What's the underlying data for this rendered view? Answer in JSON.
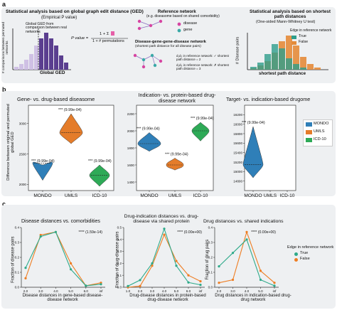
{
  "panel_a": {
    "letter": "a",
    "left": {
      "title": "Statistical analysis based on global graph edit distance (GED)",
      "subtitle": "(Empirical P value)",
      "annotation": "Global GED from comparison between real networks",
      "formula_lhs": "P value =",
      "formula_num": "1 + Σ",
      "formula_den": "1 + # permutations",
      "ylabel": "# comparisons between permuted networks",
      "xlabel": "Global GED"
    },
    "middle": {
      "ref_title": "Reference network",
      "ref_sub": "(e.g. diseasome based on shared comorbidity)",
      "legend_disease": "disease",
      "legend_gene": "gene",
      "dgd_title": "Disease-gene-gene-disease network",
      "dgd_sub": "(shortest path distance for all disease pairs)",
      "path1": "d₁d₂ in reference network: ✓ shortest path distance = 2",
      "path2": "d₁d₃ in reference network: ✗ shortest path distance = 3"
    },
    "right": {
      "title": "Statistical analysis based on shortest path distances",
      "subtitle": "(One-sided Mann-Whitney U test)",
      "legend_title": "Edge in reference network",
      "legend_true": "True",
      "legend_false": "False",
      "ylabel": "# Disease pairs",
      "xlabel": "shortest path distance"
    }
  },
  "panel_b": {
    "letter": "b",
    "ylabel": "Difference between original and permuted global GED",
    "colors": {
      "MONDO": "#2f7fb8",
      "UMLS": "#e47c2a",
      "ICD-10": "#2eaa57"
    },
    "legend": [
      "MONDO",
      "UMLS",
      "ICD-10"
    ],
    "subplots": [
      {
        "title": "Gene- vs. drug-based diseasome",
        "categories": [
          "MONDO",
          "UMLS",
          "ICD-10"
        ],
        "medians": [
          2350,
          2850,
          2150
        ],
        "ylim": [
          1900,
          3300
        ],
        "yticks": [
          "2000",
          "2500",
          "3000"
        ],
        "annotations": [
          "*** (9.99e-04)",
          "*** (9.99e-04)",
          "*** (9.99e-04)"
        ]
      },
      {
        "title": "Indication- vs. protein-based drug-disease network",
        "categories": [
          "MONDO",
          "UMLS",
          "ICD-10"
        ],
        "medians": [
          1850,
          1600,
          2000
        ],
        "ylim": [
          1300,
          2300
        ],
        "yticks": [
          "1400",
          "1600",
          "1800",
          "2000",
          "2200"
        ],
        "annotations": [
          "*** (9.99e-04)",
          "*** (9.99e-04)",
          "*** (9.99e-04)"
        ]
      },
      {
        "title": "Target- vs. indication-based drugome",
        "categories": [
          "MONDO",
          "UMLS",
          "ICD-10"
        ],
        "medians": [
          15150,
          null,
          null
        ],
        "ylim": [
          14600,
          16400
        ],
        "yticks": [
          "14800",
          "15000",
          "15200",
          "15400",
          "15600",
          "15800",
          "16000",
          "16200"
        ],
        "annotations": [
          "*** (9.99e-04)"
        ]
      }
    ]
  },
  "panel_c": {
    "letter": "c",
    "legend_title": "Edge in reference network",
    "legend": [
      {
        "label": "True",
        "color": "#2eaa8a"
      },
      {
        "label": "False",
        "color": "#ee7d22"
      }
    ],
    "chart_data": [
      {
        "type": "line",
        "title": "Disease distances vs. comorbidities",
        "xlabel": "Disease distances in gene-based disease-disease network",
        "ylabel": "Fraction of disease pairs",
        "x": [
          "2.0",
          "3.0",
          "4.0",
          "5.0",
          "6.0",
          "inf"
        ],
        "ylim": [
          0,
          0.4
        ],
        "yticks": [
          "0.0",
          "0.1",
          "0.2",
          "0.3",
          "0.4"
        ],
        "annotation": "**** (1.59e-14)",
        "series": [
          {
            "name": "True",
            "values": [
              0.13,
              0.34,
              0.37,
              0.12,
              0.01,
              0.02
            ]
          },
          {
            "name": "False",
            "values": [
              0.06,
              0.35,
              0.37,
              0.16,
              0.01,
              0.03
            ]
          }
        ]
      },
      {
        "type": "line",
        "title": "Drug-indication distances vs. drug-disease via shared protein",
        "xlabel": "Drug-disease distances in protein-based drug-disease network",
        "ylabel": "Fraction of drug-disease pairs",
        "x": [
          "1.0",
          "2.0",
          "3.0",
          "4.0",
          "5.0",
          "6.0",
          "inf"
        ],
        "ylim": [
          0,
          0.5
        ],
        "yticks": [
          "0.0",
          "0.1",
          "0.2",
          "0.3",
          "0.4",
          "0.5"
        ],
        "annotation": "**** (0.00e+00)",
        "series": [
          {
            "name": "True",
            "values": [
              0.01,
              0.06,
              0.2,
              0.49,
              0.18,
              0.04,
              0.02
            ]
          },
          {
            "name": "False",
            "values": [
              0.0,
              0.01,
              0.18,
              0.44,
              0.22,
              0.1,
              0.05
            ]
          }
        ]
      },
      {
        "type": "line",
        "title": "Drug distances vs. shared indications",
        "xlabel": "Drug distances in indication-based drug-drug network",
        "ylabel": "Fraction of drug pairs",
        "x": [
          "2.0",
          "3.0",
          "4.0",
          "5.0",
          "inf"
        ],
        "ylim": [
          0,
          0.4
        ],
        "yticks": [
          "0.0",
          "0.1",
          "0.2",
          "0.3",
          "0.4"
        ],
        "annotation": "**** (0.00e+00)",
        "series": [
          {
            "name": "True",
            "values": [
              0.14,
              0.23,
              0.32,
              0.05,
              0.01
            ]
          },
          {
            "name": "False",
            "values": [
              0.03,
              0.05,
              0.37,
              0.11,
              0.03
            ]
          }
        ]
      }
    ]
  }
}
